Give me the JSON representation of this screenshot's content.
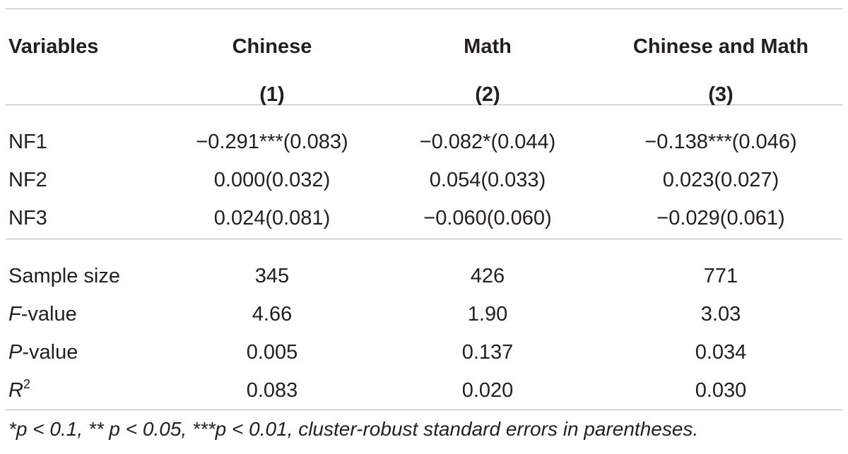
{
  "table": {
    "header": {
      "variables_label": "Variables",
      "columns": [
        {
          "name": "Chinese",
          "number": "(1)"
        },
        {
          "name": "Math",
          "number": "(2)"
        },
        {
          "name": "Chinese and Math",
          "number": "(3)"
        }
      ]
    },
    "coefficient_rows": [
      {
        "label": "NF1",
        "values": [
          "−0.291***(0.083)",
          "−0.082*(0.044)",
          "−0.138***(0.046)"
        ]
      },
      {
        "label": "NF2",
        "values": [
          "0.000(0.032)",
          "0.054(0.033)",
          "0.023(0.027)"
        ]
      },
      {
        "label": "NF3",
        "values": [
          "0.024(0.081)",
          "−0.060(0.060)",
          "−0.029(0.061)"
        ]
      }
    ],
    "stat_rows": [
      {
        "label": "Sample size",
        "values": [
          "345",
          "426",
          "771"
        ]
      },
      {
        "label_italic": "F",
        "label_rest": "-value",
        "values": [
          "4.66",
          "1.90",
          "3.03"
        ]
      },
      {
        "label_italic": "P",
        "label_rest": "-value",
        "values": [
          "0.005",
          "0.137",
          "0.034"
        ]
      },
      {
        "label_italic": "R",
        "label_sup": "2",
        "values": [
          "0.083",
          "0.020",
          "0.030"
        ]
      }
    ],
    "footnote": "*p < 0.1, ** p < 0.05, ***p < 0.01, cluster-robust standard errors in parentheses."
  }
}
